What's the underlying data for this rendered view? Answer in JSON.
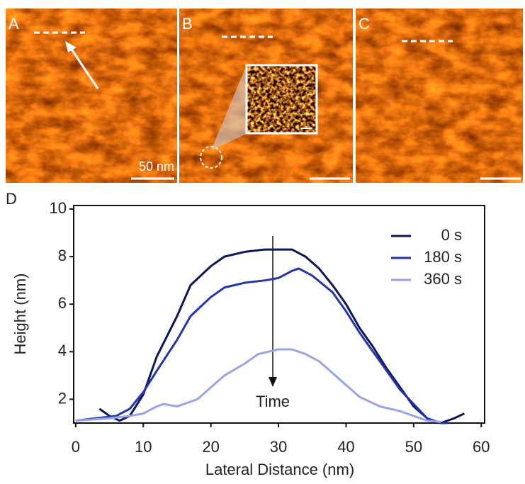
{
  "figure": {
    "panel_labels": [
      "A",
      "B",
      "C",
      "D"
    ],
    "scale_bar_label": "50 nm"
  },
  "chart_data": {
    "type": "line",
    "x_label": "Lateral Distance (nm)",
    "y_label": "Height (nm)",
    "annotation": "Time",
    "xlim": [
      -0.3,
      60.5
    ],
    "ylim": [
      1,
      10.15
    ],
    "xticks": [
      0,
      10,
      20,
      30,
      40,
      50,
      60
    ],
    "yticks": [
      2,
      4,
      6,
      8,
      10
    ],
    "legend": "upper right",
    "series": [
      {
        "name": "0 s",
        "color": "#0b1757",
        "x": [
          3.5,
          5,
          6.5,
          8,
          10,
          12,
          15,
          17,
          20,
          22,
          25,
          28,
          30,
          32,
          34,
          36,
          38,
          40,
          42,
          44,
          46,
          48,
          50,
          52,
          54,
          56,
          57.5
        ],
        "values": [
          1.6,
          1.3,
          1.1,
          1.3,
          2.2,
          3.8,
          5.5,
          6.8,
          7.6,
          8.0,
          8.2,
          8.3,
          8.3,
          8.3,
          8.0,
          7.5,
          6.8,
          6.0,
          5.0,
          4.2,
          3.3,
          2.5,
          1.7,
          1.2,
          1.0,
          1.2,
          1.4
        ]
      },
      {
        "name": "180 s",
        "color": "#2535a8",
        "x": [
          0,
          3,
          6,
          8,
          10,
          12,
          15,
          17,
          20,
          22,
          25,
          28,
          30,
          32,
          33,
          35,
          38,
          40,
          42,
          44,
          46,
          48,
          50,
          52,
          54,
          55
        ],
        "values": [
          1.1,
          1.2,
          1.3,
          1.6,
          2.3,
          3.2,
          4.5,
          5.5,
          6.3,
          6.7,
          6.9,
          7.0,
          7.1,
          7.4,
          7.5,
          7.2,
          6.5,
          5.7,
          4.8,
          4.0,
          3.2,
          2.4,
          1.8,
          1.2,
          1.0,
          1.0
        ]
      },
      {
        "name": "360 s",
        "color": "#9aa3ea",
        "x": [
          0,
          5,
          8,
          10,
          12,
          13,
          15,
          18,
          20,
          22,
          25,
          27,
          30,
          32,
          34,
          36,
          38,
          40,
          42,
          45,
          48,
          50,
          52,
          54
        ],
        "values": [
          1.1,
          1.2,
          1.3,
          1.4,
          1.7,
          1.8,
          1.7,
          2.0,
          2.5,
          3.0,
          3.5,
          3.9,
          4.1,
          4.1,
          3.9,
          3.6,
          3.1,
          2.6,
          2.1,
          1.7,
          1.5,
          1.3,
          1.1,
          1.05
        ]
      }
    ]
  }
}
